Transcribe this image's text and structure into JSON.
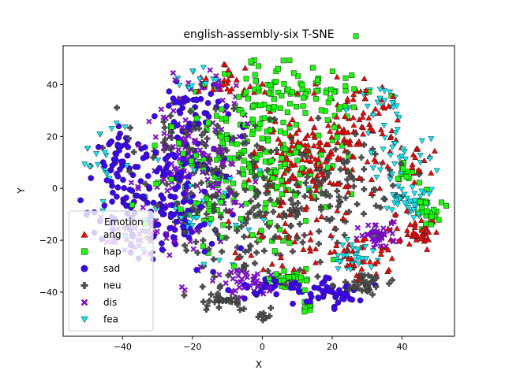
{
  "chart_data": {
    "type": "scatter",
    "title": "english-assembly-six T-SNE",
    "xlabel": "X",
    "ylabel": "Y",
    "xlim": [
      -57,
      55
    ],
    "ylim": [
      -57,
      55
    ],
    "xticks": [
      -40,
      -20,
      0,
      20,
      40
    ],
    "yticks": [
      -40,
      -20,
      0,
      20,
      40
    ],
    "xtick_labels": [
      "−40",
      "−20",
      "0",
      "20",
      "40"
    ],
    "ytick_labels": [
      "−40",
      "−20",
      "0",
      "20",
      "40"
    ],
    "grid": false,
    "legend": {
      "title": "Emotion",
      "position": "lower-left"
    },
    "series": [
      {
        "name": "ang",
        "marker": "triangle-up",
        "color": "#ff0000",
        "clusters": [
          {
            "cx": 15,
            "cy": 10,
            "sx": 8,
            "sy": 10,
            "n": 170
          },
          {
            "cx": 30,
            "cy": 25,
            "sx": 5,
            "sy": 8,
            "n": 60
          },
          {
            "cx": 45,
            "cy": -18,
            "sx": 4,
            "sy": 3,
            "n": 45
          },
          {
            "cx": 28,
            "cy": -28,
            "sx": 4,
            "sy": 4,
            "n": 35
          },
          {
            "cx": 5,
            "cy": -15,
            "sx": 10,
            "sy": 8,
            "n": 45
          },
          {
            "cx": -10,
            "cy": 40,
            "sx": 6,
            "sy": 4,
            "n": 25
          },
          {
            "cx": 46,
            "cy": 10,
            "sx": 2,
            "sy": 5,
            "n": 15
          }
        ]
      },
      {
        "name": "hap",
        "marker": "square",
        "color": "#14ff00",
        "clusters": [
          {
            "cx": 0,
            "cy": 15,
            "sx": 12,
            "sy": 18,
            "n": 200
          },
          {
            "cx": -15,
            "cy": 0,
            "sx": 10,
            "sy": 10,
            "n": 60
          },
          {
            "cx": 10,
            "cy": 38,
            "sx": 10,
            "sy": 5,
            "n": 60
          },
          {
            "cx": 48,
            "cy": -10,
            "sx": 2,
            "sy": 3,
            "n": 25
          },
          {
            "cx": 8,
            "cy": -35,
            "sx": 3,
            "sy": 2,
            "n": 25
          },
          {
            "cx": 12,
            "cy": -46,
            "sx": 1.5,
            "sy": 1,
            "n": 8
          },
          {
            "cx": 42,
            "cy": 5,
            "sx": 3,
            "sy": 3,
            "n": 15
          }
        ]
      },
      {
        "name": "sad",
        "marker": "circle",
        "color": "#3c00ff",
        "clusters": [
          {
            "cx": -28,
            "cy": -2,
            "sx": 9,
            "sy": 13,
            "n": 190
          },
          {
            "cx": -40,
            "cy": 15,
            "sx": 4,
            "sy": 5,
            "n": 25
          },
          {
            "cx": 20,
            "cy": -40,
            "sx": 4,
            "sy": 3,
            "n": 45
          },
          {
            "cx": 3,
            "cy": -38,
            "sx": 4,
            "sy": 3,
            "n": 30
          },
          {
            "cx": -20,
            "cy": 30,
            "sx": 6,
            "sy": 5,
            "n": 40
          }
        ]
      },
      {
        "name": "neu",
        "marker": "plus",
        "color": "#505050",
        "clusters": [
          {
            "cx": -5,
            "cy": -5,
            "sx": 14,
            "sy": 15,
            "n": 220
          },
          {
            "cx": 28,
            "cy": -37,
            "sx": 4,
            "sy": 2.5,
            "n": 45
          },
          {
            "cx": -10,
            "cy": -43,
            "sx": 3,
            "sy": 2,
            "n": 30
          },
          {
            "cx": 0,
            "cy": -50,
            "sx": 2,
            "sy": 1.5,
            "n": 10
          },
          {
            "cx": 25,
            "cy": 0,
            "sx": 8,
            "sy": 10,
            "n": 60
          },
          {
            "cx": -20,
            "cy": 20,
            "sx": 10,
            "sy": 10,
            "n": 50
          }
        ]
      },
      {
        "name": "dis",
        "marker": "x",
        "color": "#9600ff",
        "clusters": [
          {
            "cx": -20,
            "cy": 10,
            "sx": 8,
            "sy": 12,
            "n": 130
          },
          {
            "cx": 33,
            "cy": -18,
            "sx": 3,
            "sy": 2.5,
            "n": 50
          },
          {
            "cx": -3,
            "cy": -35,
            "sx": 4,
            "sy": 2.5,
            "n": 40
          },
          {
            "cx": -30,
            "cy": -20,
            "sx": 6,
            "sy": 5,
            "n": 40
          },
          {
            "cx": -15,
            "cy": 40,
            "sx": 5,
            "sy": 3,
            "n": 20
          }
        ]
      },
      {
        "name": "fea",
        "marker": "triangle-down",
        "color": "#00f0ff",
        "clusters": [
          {
            "cx": 41,
            "cy": -5,
            "sx": 3,
            "sy": 2.5,
            "n": 45
          },
          {
            "cx": 25,
            "cy": -25,
            "sx": 4,
            "sy": 3,
            "n": 30
          },
          {
            "cx": 40,
            "cy": 12,
            "sx": 4,
            "sy": 6,
            "n": 30
          },
          {
            "cx": -45,
            "cy": 12,
            "sx": 3,
            "sy": 8,
            "n": 20
          },
          {
            "cx": 35,
            "cy": 35,
            "sx": 5,
            "sy": 4,
            "n": 25
          },
          {
            "cx": -20,
            "cy": -10,
            "sx": 10,
            "sy": 10,
            "n": 45
          },
          {
            "cx": -20,
            "cy": 42,
            "sx": 4,
            "sy": 2,
            "n": 12
          }
        ]
      }
    ]
  }
}
